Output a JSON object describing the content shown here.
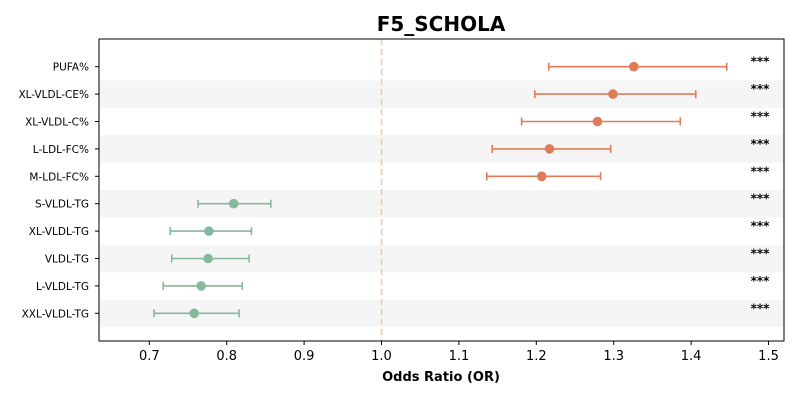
{
  "chart_data": {
    "type": "forest",
    "title": "F5_SCHOLA",
    "xlabel": "Odds Ratio (OR)",
    "xlim": [
      0.635,
      1.52
    ],
    "xticks": [
      "0.7",
      "0.8",
      "0.9",
      "1.0",
      "1.1",
      "1.2",
      "1.3",
      "1.4",
      "1.5"
    ],
    "reference_line": 1.0,
    "grid": false,
    "colors": {
      "positive": "#e07b5a",
      "negative": "#86b89e",
      "reference": "#f5c98a",
      "band": "#f5f5f5"
    },
    "rows": [
      {
        "label": "PUFA%",
        "or": 1.326,
        "low": 1.216,
        "high": 1.446,
        "sig": "***"
      },
      {
        "label": "XL-VLDL-CE%",
        "or": 1.299,
        "low": 1.198,
        "high": 1.406,
        "sig": "***"
      },
      {
        "label": "XL-VLDL-C%",
        "or": 1.279,
        "low": 1.181,
        "high": 1.386,
        "sig": "***"
      },
      {
        "label": "L-LDL-FC%",
        "or": 1.217,
        "low": 1.143,
        "high": 1.296,
        "sig": "***"
      },
      {
        "label": "M-LDL-FC%",
        "or": 1.207,
        "low": 1.136,
        "high": 1.283,
        "sig": "***"
      },
      {
        "label": "S-VLDL-TG",
        "or": 0.809,
        "low": 0.763,
        "high": 0.857,
        "sig": "***"
      },
      {
        "label": "XL-VLDL-TG",
        "or": 0.777,
        "low": 0.727,
        "high": 0.832,
        "sig": "***"
      },
      {
        "label": "VLDL-TG",
        "or": 0.776,
        "low": 0.729,
        "high": 0.829,
        "sig": "***"
      },
      {
        "label": "L-VLDL-TG",
        "or": 0.767,
        "low": 0.718,
        "high": 0.82,
        "sig": "***"
      },
      {
        "label": "XXL-VLDL-TG",
        "or": 0.758,
        "low": 0.706,
        "high": 0.816,
        "sig": "***"
      }
    ]
  }
}
